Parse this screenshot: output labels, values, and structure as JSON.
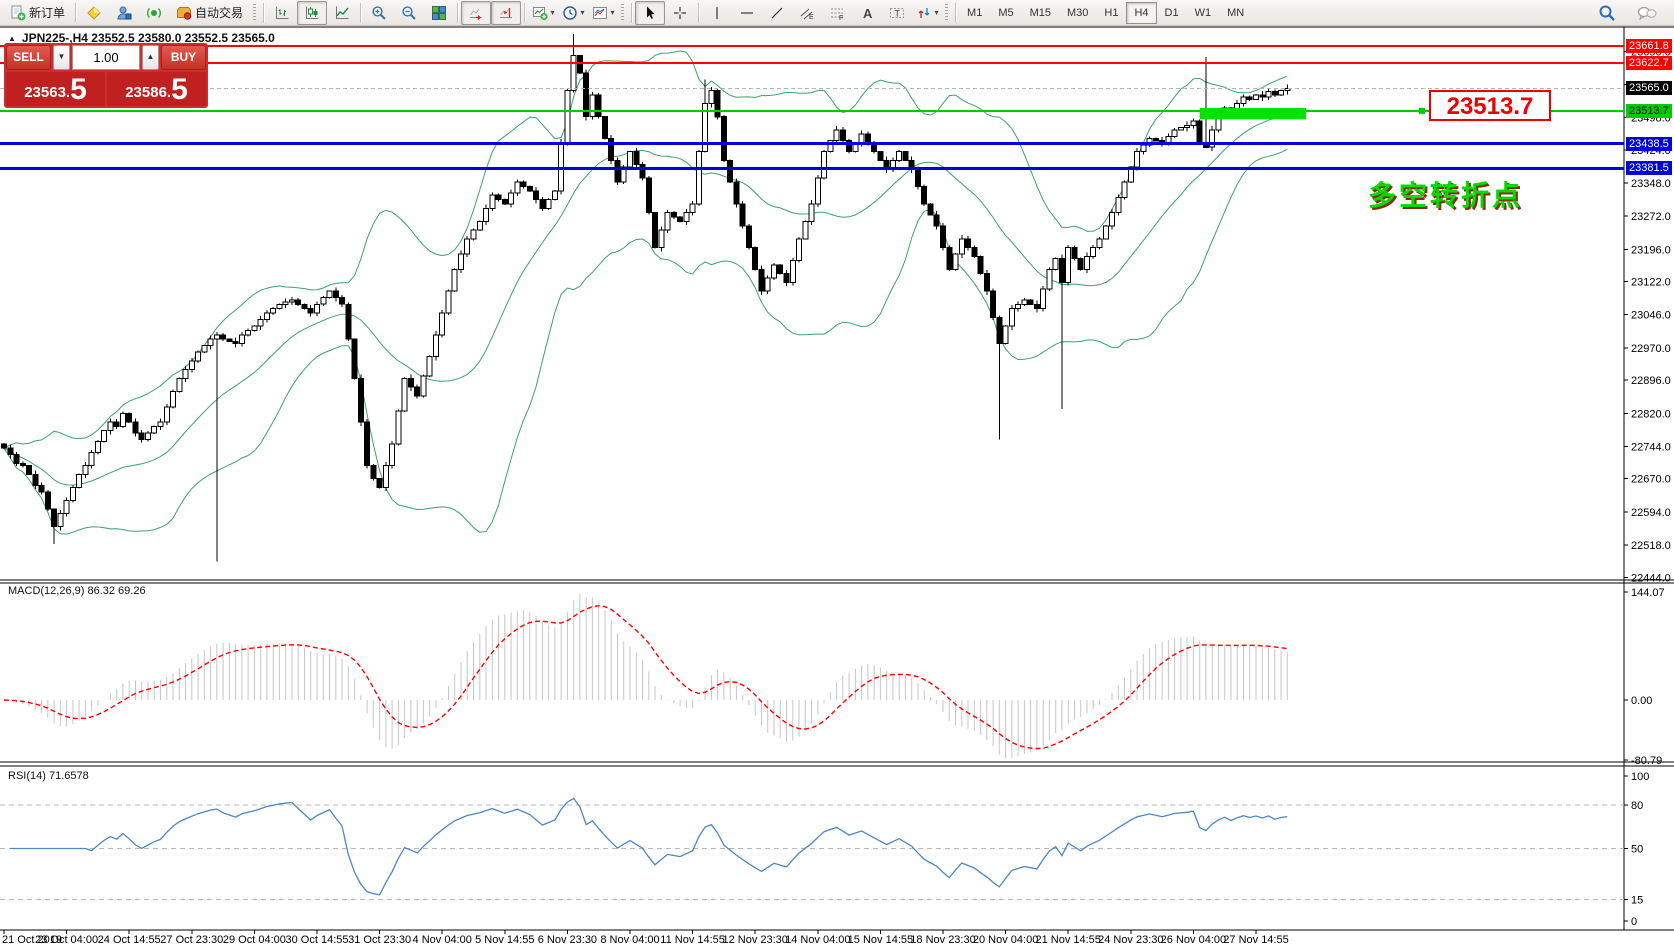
{
  "toolbar": {
    "groups": [
      {
        "name": "trade",
        "grip": false,
        "items": [
          {
            "name": "new-order",
            "icon": "new-order",
            "label": "新订单"
          }
        ]
      },
      {
        "name": "apps",
        "grip": false,
        "items": [
          {
            "name": "styler",
            "icon": "styler"
          },
          {
            "name": "profiles",
            "icon": "profiles"
          },
          {
            "name": "alerts",
            "icon": "alerts"
          },
          {
            "name": "auto-trading",
            "icon": "auto-trading",
            "label": "自动交易"
          }
        ]
      },
      {
        "name": "chart-type",
        "grip": true,
        "items": [
          {
            "name": "bar-chart",
            "icon": "bar-chart"
          },
          {
            "name": "candlestick",
            "icon": "candlestick",
            "pressed": true
          },
          {
            "name": "line-chart",
            "icon": "line-chart"
          }
        ]
      },
      {
        "name": "zoom",
        "grip": false,
        "items": [
          {
            "name": "zoom-in",
            "icon": "zoom-in"
          },
          {
            "name": "zoom-out",
            "icon": "zoom-out"
          },
          {
            "name": "tile-windows",
            "icon": "tile-windows"
          }
        ]
      },
      {
        "name": "scroll",
        "grip": false,
        "items": [
          {
            "name": "auto-scroll",
            "icon": "auto-scroll",
            "pressed": true
          },
          {
            "name": "chart-shift",
            "icon": "chart-shift",
            "pressed": true
          }
        ]
      },
      {
        "name": "dropdowns",
        "grip": false,
        "items": [
          {
            "name": "indicators",
            "icon": "indicators",
            "caret": true
          },
          {
            "name": "periods",
            "icon": "periods",
            "caret": true
          },
          {
            "name": "templates",
            "icon": "templates",
            "caret": true
          }
        ]
      },
      {
        "name": "objects",
        "grip": true,
        "items": [
          {
            "name": "cursor",
            "icon": "cursor",
            "pressed": true
          },
          {
            "name": "crosshair",
            "icon": "crosshair"
          },
          {
            "name": "separator"
          },
          {
            "name": "vertical-line",
            "icon": "vertical-line"
          },
          {
            "name": "horizontal-line",
            "icon": "horizontal-line"
          },
          {
            "name": "trendline",
            "icon": "trendline"
          },
          {
            "name": "equidistant-channel",
            "icon": "equidistant-channel"
          },
          {
            "name": "fibonacci",
            "icon": "fibonacci"
          },
          {
            "name": "text",
            "icon": "text"
          },
          {
            "name": "text-label",
            "icon": "text-label"
          },
          {
            "name": "arrows",
            "icon": "arrows",
            "caret": true
          }
        ]
      }
    ],
    "timeframes": [
      {
        "label": "M1"
      },
      {
        "label": "M5"
      },
      {
        "label": "M15"
      },
      {
        "label": "M30"
      },
      {
        "label": "H1"
      },
      {
        "label": "H4",
        "pressed": true
      },
      {
        "label": "D1"
      },
      {
        "label": "W1"
      },
      {
        "label": "MN"
      }
    ],
    "right_icons": [
      {
        "name": "search",
        "icon": "search"
      },
      {
        "name": "chat",
        "icon": "chat"
      }
    ]
  },
  "chart": {
    "collapse_glyph": "▲",
    "title": "JPN225-,H4  23552.5 23580.0 23552.5 23565.0",
    "quote_panel": {
      "sell_label": "SELL",
      "buy_label": "BUY",
      "volume": "1.00",
      "vol_down_glyph": "▼",
      "vol_up_glyph": "▲",
      "sell_price_int": "23563.",
      "sell_price_big": "5",
      "buy_price_int": "23586.",
      "buy_price_big": "5"
    },
    "big_price_label": "23513.7",
    "annotation_text": "多空转折点"
  },
  "chart_data": {
    "type": "candlestick",
    "symbol": "JPN225-",
    "timeframe": "H4",
    "ohlc_quote": {
      "open": 23552.5,
      "high": 23580.0,
      "low": 23552.5,
      "close": 23565.0
    },
    "bid": "23563.5",
    "ask": "23586.5",
    "closes": [
      22740,
      22725,
      22705,
      22700,
      22680,
      22655,
      22640,
      22600,
      22560,
      22590,
      22620,
      22650,
      22680,
      22700,
      22730,
      22755,
      22780,
      22800,
      22790,
      22820,
      22800,
      22775,
      22760,
      22775,
      22790,
      22800,
      22835,
      22870,
      22900,
      22920,
      22940,
      22960,
      22975,
      22990,
      23000,
      22990,
      22985,
      22980,
      23000,
      23010,
      23020,
      23035,
      23050,
      23060,
      23070,
      23075,
      23080,
      23070,
      23060,
      23050,
      23070,
      23085,
      23100,
      23085,
      23070,
      22990,
      22900,
      22800,
      22700,
      22670,
      22650,
      22700,
      22750,
      22825,
      22900,
      22880,
      22860,
      22905,
      22950,
      23000,
      23050,
      23100,
      23150,
      23185,
      23220,
      23240,
      23260,
      23290,
      23320,
      23310,
      23300,
      23325,
      23350,
      23340,
      23330,
      23310,
      23290,
      23310,
      23330,
      23440,
      23560,
      23640,
      23600,
      23500,
      23550,
      23500,
      23450,
      23400,
      23350,
      23385,
      23420,
      23390,
      23360,
      23280,
      23200,
      23240,
      23280,
      23270,
      23260,
      23280,
      23300,
      23420,
      23530,
      23560,
      23500,
      23400,
      23350,
      23300,
      23250,
      23200,
      23150,
      23100,
      23130,
      23160,
      23140,
      23120,
      23170,
      23220,
      23260,
      23300,
      23360,
      23420,
      23445,
      23470,
      23445,
      23420,
      23440,
      23460,
      23440,
      23420,
      23400,
      23380,
      23400,
      23420,
      23400,
      23380,
      23340,
      23300,
      23275,
      23250,
      23200,
      23150,
      23185,
      23220,
      23200,
      23180,
      23140,
      23100,
      23040,
      22980,
      23020,
      23060,
      23070,
      23080,
      23070,
      23060,
      23105,
      23150,
      23175,
      23120,
      23200,
      23175,
      23150,
      23180,
      23200,
      23220,
      23250,
      23280,
      23315,
      23350,
      23385,
      23420,
      23435,
      23450,
      23445,
      23440,
      23455,
      23470,
      23475,
      23480,
      23490,
      23440,
      23430,
      23470,
      23500,
      23520,
      23510,
      23530,
      23545,
      23540,
      23550,
      23545,
      23558,
      23550,
      23560,
      23565
    ],
    "wicks": [
      [
        8,
        "low",
        22520
      ],
      [
        34,
        "low",
        22480
      ],
      [
        91,
        "high",
        23690
      ],
      [
        112,
        "high",
        23585
      ],
      [
        159,
        "low",
        22760
      ],
      [
        169,
        "low",
        22830
      ],
      [
        192,
        "high",
        23637
      ]
    ],
    "levels": [
      {
        "price": 23661.8,
        "label": "23661.8",
        "type": "red"
      },
      {
        "price": 23622.7,
        "label": "23622.7",
        "type": "red"
      },
      {
        "price": 23565.0,
        "label": "23565.0",
        "type": "current"
      },
      {
        "price": 23513.7,
        "label": "23513.7",
        "type": "green"
      },
      {
        "price": 23438.5,
        "label": "23438.5",
        "type": "blue"
      },
      {
        "price": 23381.5,
        "label": "23381.5",
        "type": "blue"
      }
    ],
    "highlight_rect": {
      "bar_from": 191,
      "bar_to": 208,
      "price_top": 23520,
      "price_bottom": 23494
    },
    "price_ticks": [
      "23650.0",
      "23574.0",
      "23498.0",
      "23424.0",
      "23348.0",
      "23272.0",
      "23196.0",
      "23122.0",
      "23046.0",
      "22970.0",
      "22896.0",
      "22820.0",
      "22744.0",
      "22670.0",
      "22594.0",
      "22518.0",
      "22444.0"
    ],
    "time_labels": [
      "21 Oct 2019",
      "23 Oct 04:00",
      "24 Oct 14:55",
      "27 Oct 23:30",
      "29 Oct 04:00",
      "30 Oct 14:55",
      "31 Oct 23:30",
      "4 Nov 04:00",
      "5 Nov 14:55",
      "6 Nov 23:30",
      "8 Nov 04:00",
      "11 Nov 14:55",
      "12 Nov 23:30",
      "14 Nov 04:00",
      "15 Nov 14:55",
      "18 Nov 23:30",
      "20 Nov 04:00",
      "21 Nov 14:55",
      "24 Nov 23:30",
      "26 Nov 04:00",
      "27 Nov 14:55"
    ],
    "bollinger": {
      "period": 20,
      "deviation": 2
    },
    "macd": {
      "label_full": "MACD(12,26,9) 86.32 69.26",
      "fast": 12,
      "slow": 26,
      "signal": 9,
      "value": 86.32,
      "signal_value": 69.26,
      "scale_labels": [
        "144.07",
        "0.00",
        "-80.79"
      ]
    },
    "rsi": {
      "label_full": "RSI(14) 71.6578",
      "period": 14,
      "value": 71.6578,
      "scale_labels": [
        "100",
        "80",
        "50",
        "15",
        "0"
      ],
      "level_values": [
        80,
        50,
        15
      ]
    }
  },
  "colors": {
    "level_red": "#ff0000",
    "level_blue": "#0000dd",
    "level_green": "#00ca00",
    "current_line": "#b4b4b4",
    "current_label_bg": "#000000",
    "candle_up": "#ffffff",
    "candle_down": "#000000",
    "candle_border": "#000000",
    "band_green": "#3aa36c",
    "macd_hist": "#c6c6c6",
    "macd_signal": "#ff0000",
    "rsi_line": "#4a86c8",
    "highlight_green": "#00e400",
    "annotation_green": "#00dc00",
    "big_label_red": "#ee0000"
  }
}
